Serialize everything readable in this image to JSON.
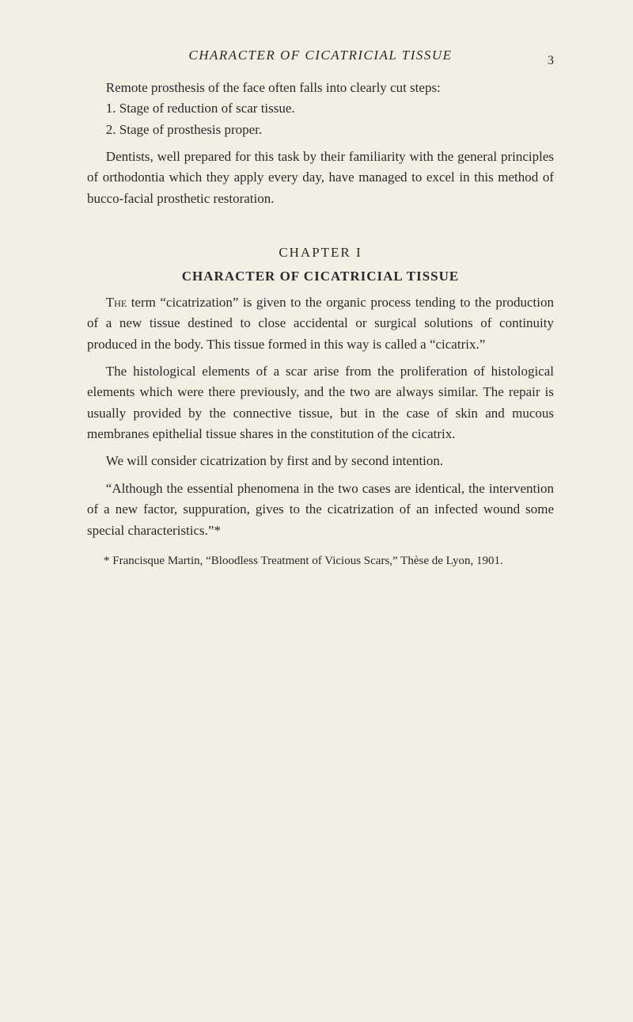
{
  "running_head": "CHARACTER OF CICATRICIAL TISSUE",
  "page_number": "3",
  "intro": {
    "p1": "Remote prosthesis of the face often falls into clearly cut steps:",
    "item1": "1. Stage of reduction of scar tissue.",
    "item2": "2. Stage of prosthesis proper.",
    "p2": "Dentists, well prepared for this task by their familiarity with the general principles of orthodontia which they apply every day, have managed to excel in this method of bucco-facial prosthetic restoration."
  },
  "chapter": {
    "label": "CHAPTER I",
    "title": "CHARACTER OF CICATRICIAL TISSUE"
  },
  "body": {
    "p1_lead": "The",
    "p1_rest": " term “cicatrization” is given to the organic process tending to the production of a new tissue destined to close accidental or surgical solutions of continuity produced in the body. This tissue formed in this way is called a “cicatrix.”",
    "p2": "The histological elements of a scar arise from the proliferation of histological elements which were there previously, and the two are always similar. The repair is usually provided by the connective tissue, but in the case of skin and mucous membranes epithelial tissue shares in the constitution of the cicatrix.",
    "p3": "We will consider cicatrization by first and by second intention.",
    "p4": "“Although the essential phenomena in the two cases are identical, the intervention of a new factor, suppuration, gives to the cicatrization of an infected wound some special characteristics.”*"
  },
  "footnote": "* Francisque Martin, “Bloodless Treatment of Vicious Scars,” Thèse de Lyon, 1901."
}
